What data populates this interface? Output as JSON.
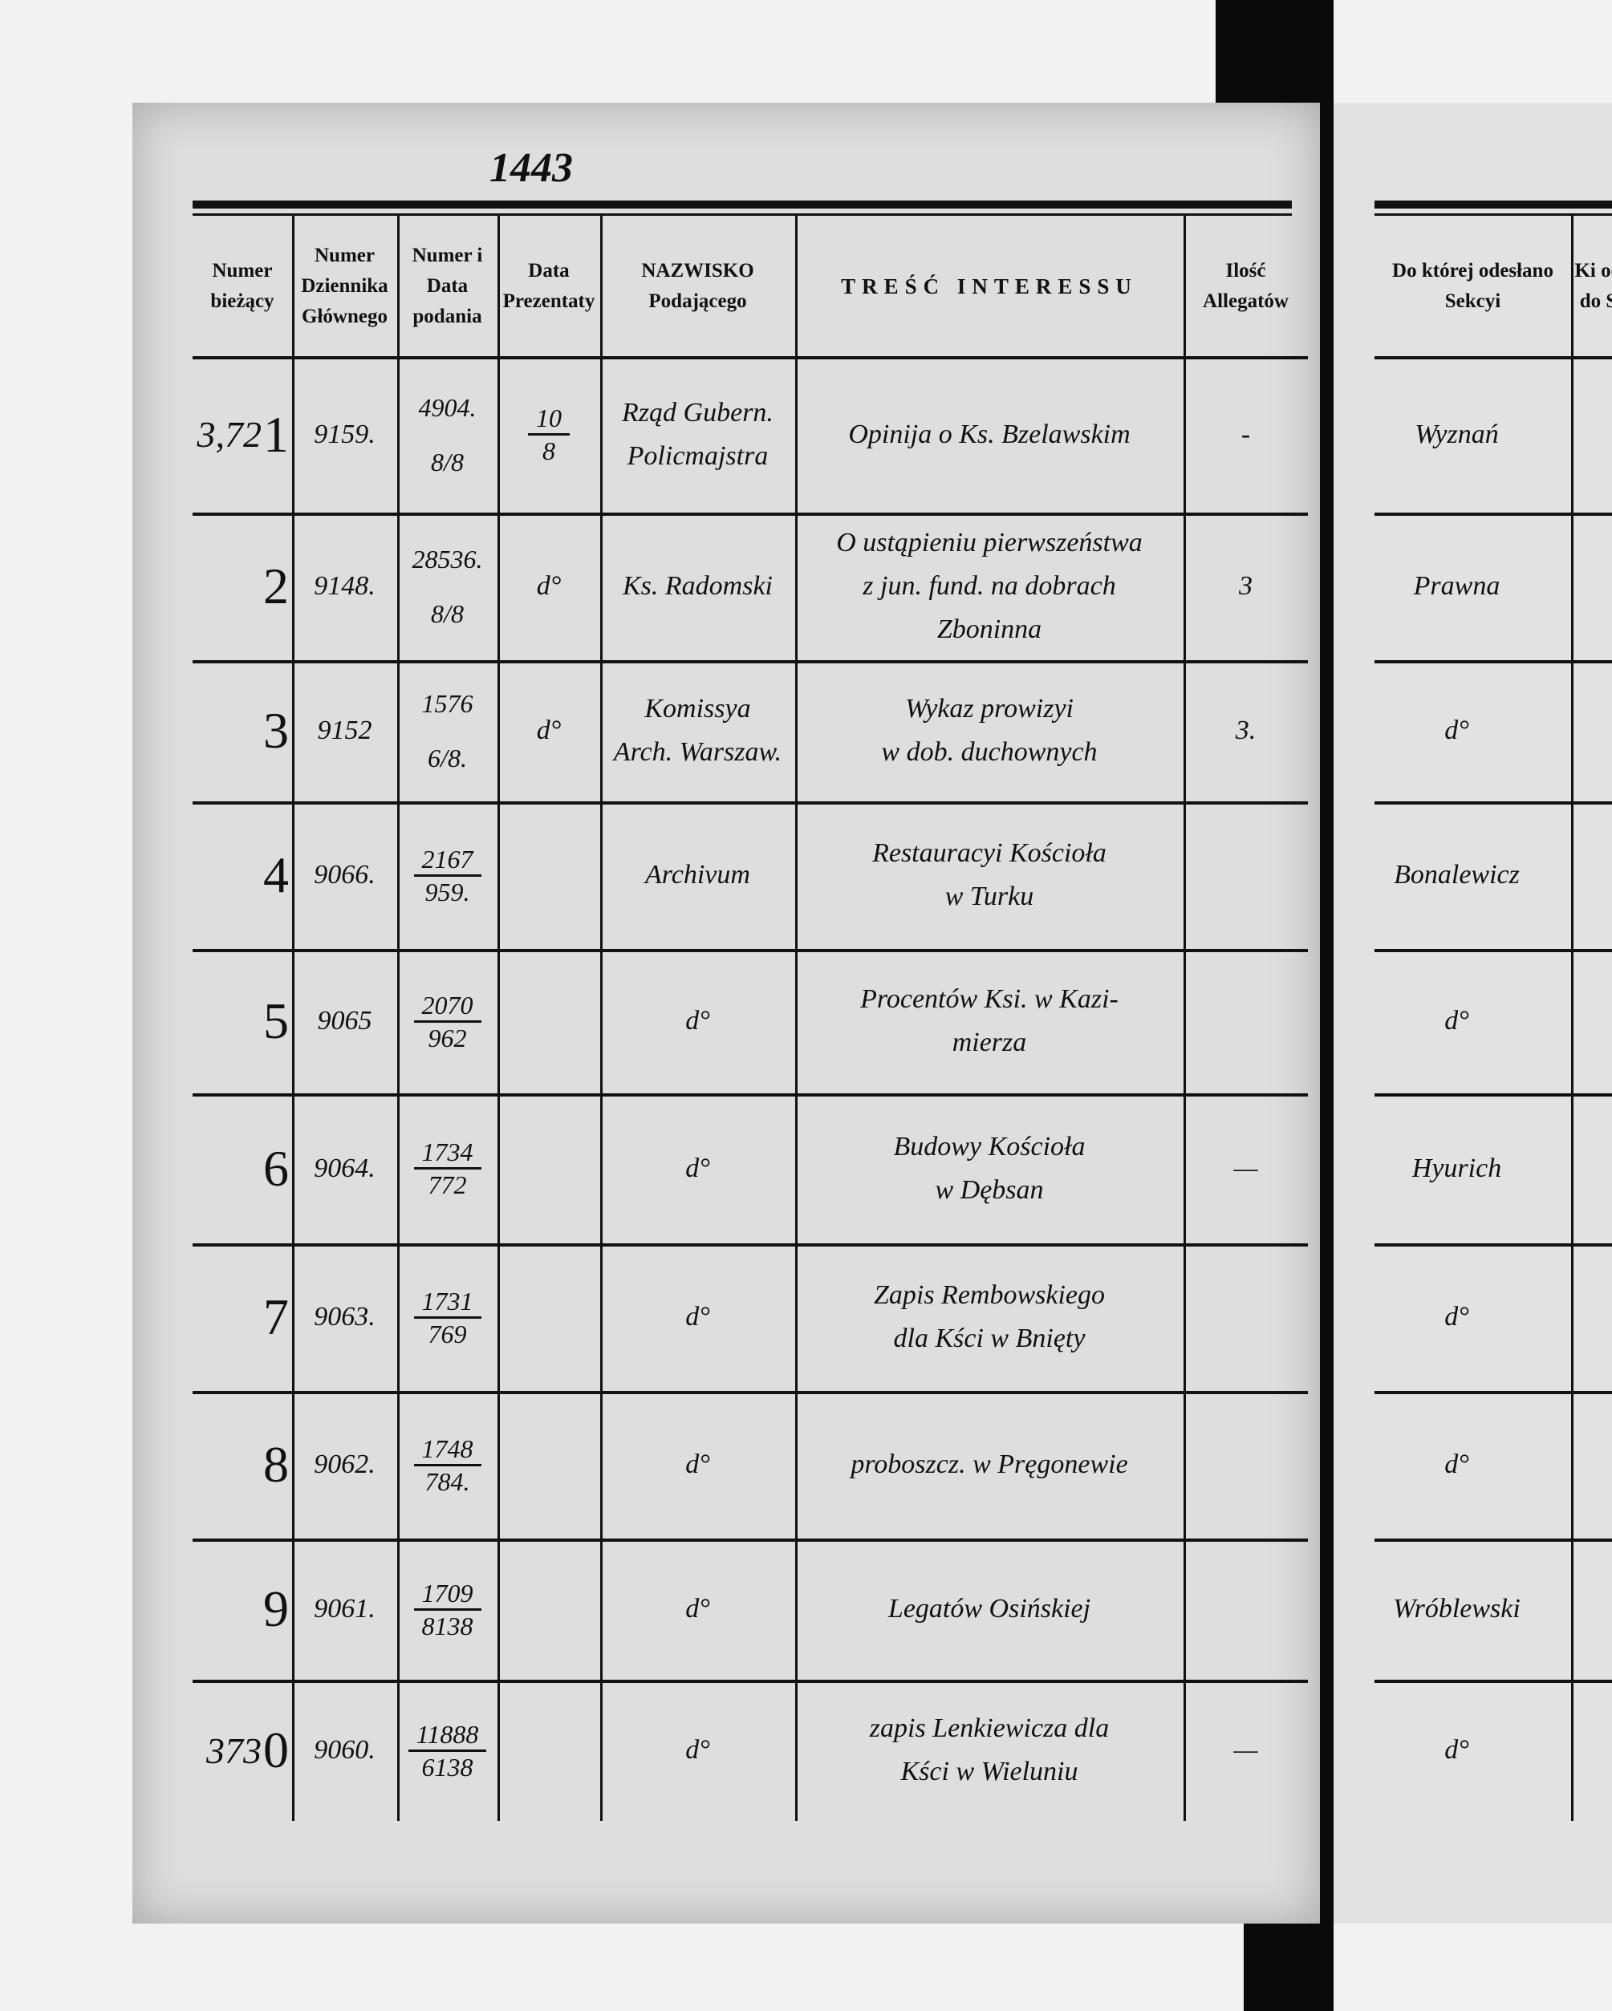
{
  "folio": "1443",
  "headers": {
    "numer_biezacy": "Numer bieżący",
    "numer_dziennika": "Numer Dziennika Głównego",
    "numer_data_podania": "Numer i Data podania",
    "data_prezentaty": "Data Prezentaty",
    "nazwisko": "NAZWISKO Podającego",
    "tresc": "TREŚĆ INTERESSU",
    "allegaty": "Ilość Allegatów",
    "sekcja": "Do której odesłano Sekcyi",
    "partial": "Ki od do S"
  },
  "rows": [
    {
      "prefix": "3,72",
      "digit": "1",
      "dziennik": "9159.",
      "podanie_num": "4904.",
      "podanie_den": "8/8",
      "podanie_frac": false,
      "prezentata_num": "10",
      "prezentata_den": "8",
      "nazwisko": [
        "Rząd Gubern.",
        "Policmajstra"
      ],
      "tresc": [
        "Opinija o Ks. Bzelawskim"
      ],
      "allegaty": "-",
      "sekcja": "Wyznań"
    },
    {
      "prefix": "",
      "digit": "2",
      "dziennik": "9148.",
      "podanie_num": "28536.",
      "podanie_den": "8/8",
      "podanie_frac": false,
      "prezentata": "d°",
      "nazwisko": [
        "Ks. Radomski"
      ],
      "tresc": [
        "O ustąpieniu pierwszeństwa",
        "z jun. fund. na dobrach",
        "Zboninna"
      ],
      "allegaty": "3",
      "sekcja": "Prawna"
    },
    {
      "prefix": "",
      "digit": "3",
      "dziennik": "9152",
      "podanie_num": "1576",
      "podanie_den": "6/8.",
      "podanie_frac": false,
      "prezentata": "d°",
      "nazwisko": [
        "Komissya",
        "Arch. Warszaw."
      ],
      "tresc": [
        "Wykaz prowizyi",
        "w dob. duchownych"
      ],
      "allegaty": "3.",
      "sekcja": "d°"
    },
    {
      "prefix": "",
      "digit": "4",
      "dziennik": "9066.",
      "podanie_num": "2167",
      "podanie_den": "959.",
      "podanie_frac": true,
      "prezentata": "",
      "nazwisko": [
        "Archivum"
      ],
      "tresc": [
        "Restauracyi Kościoła",
        "w Turku"
      ],
      "allegaty": "",
      "sekcja": "Bonalewicz"
    },
    {
      "prefix": "",
      "digit": "5",
      "dziennik": "9065",
      "podanie_num": "2070",
      "podanie_den": "962",
      "podanie_frac": true,
      "prezentata": "",
      "nazwisko": [
        "d°"
      ],
      "tresc": [
        "Procentów Ksi. w Kazi-",
        "mierza"
      ],
      "allegaty": "",
      "sekcja": "d°"
    },
    {
      "prefix": "",
      "digit": "6",
      "dziennik": "9064.",
      "podanie_num": "1734",
      "podanie_den": "772",
      "podanie_frac": true,
      "prezentata": "",
      "nazwisko": [
        "d°"
      ],
      "tresc": [
        "Budowy Kościoła",
        "w Dębsan"
      ],
      "allegaty": "—",
      "sekcja": "Hyurich"
    },
    {
      "prefix": "",
      "digit": "7",
      "dziennik": "9063.",
      "podanie_num": "1731",
      "podanie_den": "769",
      "podanie_frac": true,
      "prezentata": "",
      "nazwisko": [
        "d°"
      ],
      "tresc": [
        "Zapis Rembowskiego",
        "dla Kści w Bnięty"
      ],
      "allegaty": "",
      "sekcja": "d°"
    },
    {
      "prefix": "",
      "digit": "8",
      "dziennik": "9062.",
      "podanie_num": "1748",
      "podanie_den": "784.",
      "podanie_frac": true,
      "prezentata": "",
      "nazwisko": [
        "d°"
      ],
      "tresc": [
        "proboszcz. w Pręgonewie"
      ],
      "allegaty": "",
      "sekcja": "d°"
    },
    {
      "prefix": "",
      "digit": "9",
      "dziennik": "9061.",
      "podanie_num": "1709",
      "podanie_den": "8138",
      "podanie_frac": true,
      "prezentata": "",
      "nazwisko": [
        "d°"
      ],
      "tresc": [
        "Legatów Osińskiej"
      ],
      "allegaty": "",
      "sekcja": "Wróblewski"
    },
    {
      "prefix": "373",
      "digit": "0",
      "dziennik": "9060.",
      "podanie_num": "11888",
      "podanie_den": "6138",
      "podanie_frac": true,
      "prezentata": "",
      "nazwisko": [
        "d°"
      ],
      "tresc": [
        "zapis Lenkiewicza dla",
        "Kści w Wieluniu"
      ],
      "allegaty": "—",
      "sekcja": "d°"
    }
  ]
}
